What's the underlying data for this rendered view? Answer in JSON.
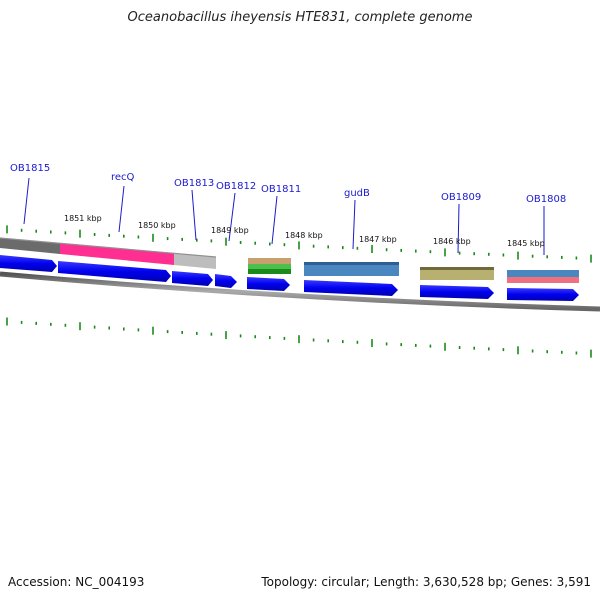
{
  "title": "Oceanobacillus iheyensis HTE831, complete genome",
  "accession": "Accession: NC_004193",
  "topology": "Topology: circular; Length: 3,630,528 bp; Genes: 3,591",
  "gene_labels": [
    {
      "id": "ob1815",
      "text": "OB1815"
    },
    {
      "id": "recq",
      "text": "recQ"
    },
    {
      "id": "ob1813",
      "text": "OB1813"
    },
    {
      "id": "ob1812",
      "text": "OB1812"
    },
    {
      "id": "ob1811",
      "text": "OB1811"
    },
    {
      "id": "gudb",
      "text": "gudB"
    },
    {
      "id": "ob1809",
      "text": "OB1809"
    },
    {
      "id": "ob1808",
      "text": "OB1808"
    }
  ],
  "kbp_labels": [
    "1851 kbp",
    "1850 kbp",
    "1849 kbp",
    "1848 kbp",
    "1847 kbp",
    "1846 kbp",
    "1845 kbp"
  ],
  "colors": {
    "backbone": "#7a7a7a",
    "gene_arrow": "#0000ee",
    "recq": "#ff2f92",
    "tick": "#1a8a1a",
    "label": "#1a1ad0",
    "gudb": "#4a86c0",
    "ob1809": "#b8b070",
    "ob1808_top": "#4a86c0",
    "ob1808_bottom": "#f07080"
  }
}
